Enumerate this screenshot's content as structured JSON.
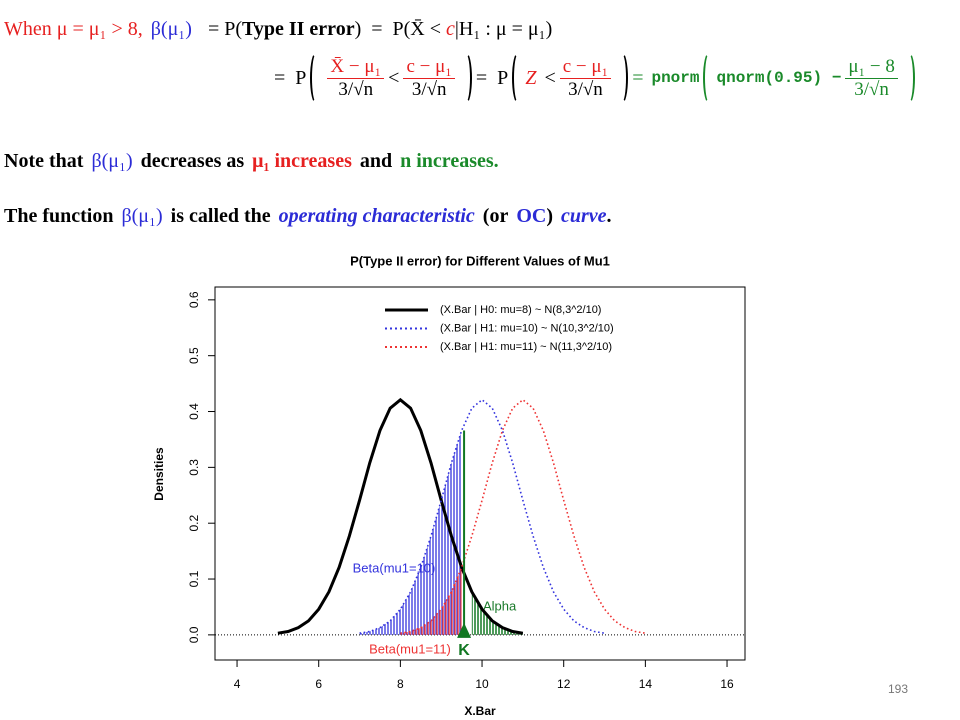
{
  "formula": {
    "line1": [
      "When μ = μ₁ > 8,",
      "β(μ₁)",
      "=  P(",
      "Type II error",
      ")  =  P(X̄ < ",
      "c",
      "|H₁ : μ = μ₁)"
    ],
    "line2": [
      "=  P",
      "X̄ − μ₁",
      "3/√n",
      "<",
      "c − μ₁",
      "3/√n",
      "=  P",
      "Z",
      "<",
      "c − μ₁",
      "3/√n",
      "=",
      "pnorm",
      "qnorm(0.95) −",
      "μ₁ − 8",
      "3/√n"
    ]
  },
  "note": [
    "Note that",
    "β(μ₁)",
    "decreases as",
    "μ₁ increases",
    "and",
    "n increases."
  ],
  "definition": [
    "The function",
    "β(μ₁)",
    "is called the",
    "operating characteristic",
    "(or",
    "OC",
    ")",
    "curve",
    "."
  ],
  "page_number": "193",
  "chart_data": {
    "type": "line",
    "title": "P(Type II error) for Different Values of Mu1",
    "x_label": "X.Bar",
    "y_label": "Densities",
    "x": [
      5,
      5.25,
      5.5,
      5.75,
      6,
      6.25,
      6.5,
      6.75,
      7,
      7.25,
      7.5,
      7.75,
      8,
      8.25,
      8.5,
      8.75,
      9,
      9.25,
      9.5,
      9.75,
      10,
      10.25,
      10.5,
      10.75,
      11,
      11.25,
      11.5,
      11.75,
      12,
      12.25,
      12.5,
      12.75,
      13,
      13.25,
      13.5,
      13.75,
      14
    ],
    "series": [
      {
        "name": "(X.Bar | H0: mu=8) ~ N(8,3^2/10)",
        "color": "#000000",
        "style": "solid",
        "values": [
          0.003,
          0.006,
          0.013,
          0.025,
          0.046,
          0.077,
          0.121,
          0.177,
          0.241,
          0.308,
          0.366,
          0.406,
          0.421,
          0.406,
          0.366,
          0.308,
          0.241,
          0.177,
          0.121,
          0.077,
          0.046,
          0.025,
          0.013,
          0.006,
          0.003,
          null,
          null,
          null,
          null,
          null,
          null,
          null,
          null,
          null,
          null,
          null,
          null
        ]
      },
      {
        "name": "(X.Bar | H1: mu=10) ~ N(10,3^2/10)",
        "color": "#3333dd",
        "style": "dotted",
        "values": [
          null,
          null,
          null,
          null,
          null,
          null,
          null,
          null,
          0.003,
          0.006,
          0.013,
          0.025,
          0.046,
          0.077,
          0.121,
          0.177,
          0.241,
          0.308,
          0.366,
          0.406,
          0.421,
          0.406,
          0.366,
          0.308,
          0.241,
          0.177,
          0.121,
          0.077,
          0.046,
          0.025,
          0.013,
          0.006,
          0.003,
          null,
          null,
          null,
          null
        ]
      },
      {
        "name": "(X.Bar | H1: mu=11) ~ N(11,3^2/10)",
        "color": "#ee3333",
        "style": "dotted",
        "values": [
          null,
          null,
          null,
          null,
          null,
          null,
          null,
          null,
          null,
          null,
          null,
          null,
          0.003,
          0.006,
          0.013,
          0.025,
          0.046,
          0.077,
          0.121,
          0.177,
          0.241,
          0.308,
          0.366,
          0.406,
          0.421,
          0.406,
          0.366,
          0.308,
          0.241,
          0.177,
          0.121,
          0.077,
          0.046,
          0.025,
          0.013,
          0.006,
          0.003
        ]
      }
    ],
    "critical_value": 9.56,
    "critical_label": "K",
    "annotations": [
      "Beta(mu1=10)",
      "Alpha",
      "Beta(mu1=11)"
    ],
    "xlim": [
      3.46,
      16.44
    ],
    "ylim": [
      -0.045,
      0.623
    ],
    "xticks": [
      4,
      6,
      8,
      10,
      12,
      14,
      16
    ],
    "yticks": [
      {
        "value": 0,
        "label": "0.0"
      },
      0.1,
      0.2,
      0.3,
      0.4,
      0.5,
      0.6
    ],
    "legend": "top"
  }
}
